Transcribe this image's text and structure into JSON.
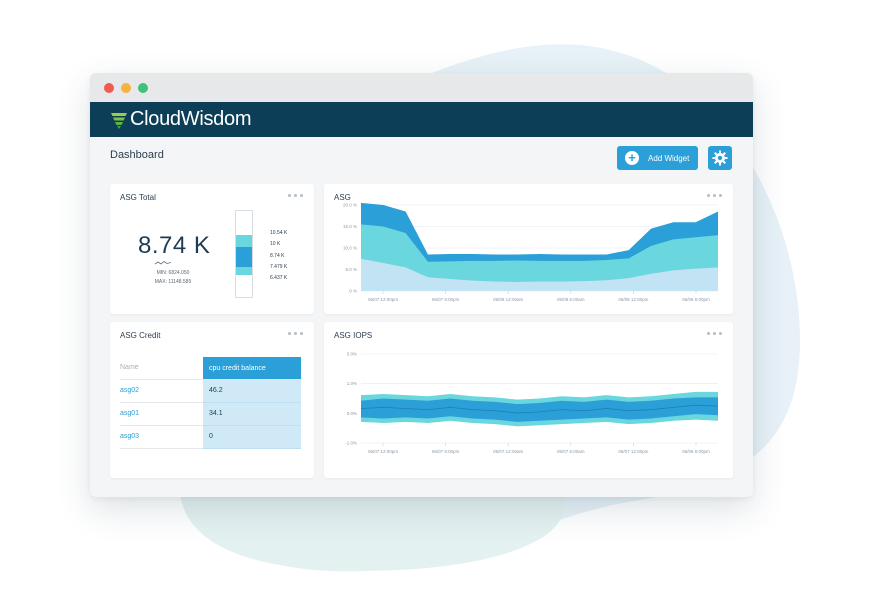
{
  "app": {
    "brand": "CloudWisdom",
    "page_title": "Dashboard",
    "add_widget_label": "Add Widget",
    "colors": {
      "brand_bar": "#0c3e57",
      "accent": "#2b9fd7",
      "series_dark": "#2b9fd7",
      "series_mid": "#6ad6dd",
      "series_light": "#c2e3f3"
    }
  },
  "widgets": {
    "asg_total": {
      "title": "ASG Total",
      "value": "8.74 K",
      "min_label": "MIN: 6824.050",
      "max_label": "MAX: 11148.585",
      "scale_labels": [
        "10.54 K",
        "10 K",
        "8.74 K",
        "7.479 K",
        "6.437 K"
      ]
    },
    "asg": {
      "title": "ASG"
    },
    "asg_credit": {
      "title": "ASG Credit",
      "columns": [
        "Name",
        "cpu credit balance"
      ],
      "rows": [
        {
          "name": "asg02",
          "value": "46.2"
        },
        {
          "name": "asg01",
          "value": "34.1"
        },
        {
          "name": "asg03",
          "value": "0"
        }
      ]
    },
    "asg_iops": {
      "title": "ASG IOPS"
    }
  },
  "chart_data": [
    {
      "type": "area",
      "title": "ASG",
      "y_ticks": [
        "20.0 %",
        "15.0 %",
        "10.0 %",
        "5.0 %",
        "0 %"
      ],
      "ylim": [
        0,
        20
      ],
      "x_ticks": [
        "06/07 12:00pm",
        "06/07 6:00pm",
        "06/08 12:00am",
        "06/08 6:00am",
        "06/08 12:00pm",
        "06/08 6:00pm"
      ],
      "x": [
        0,
        2,
        4,
        6,
        8,
        10,
        12,
        14,
        16,
        18,
        20,
        22,
        24,
        26,
        28,
        30,
        32
      ],
      "grid": true,
      "series": [
        {
          "values": [
            20.5,
            20,
            18.5,
            8.5,
            8.6,
            8.6,
            8.5,
            8.5,
            8.6,
            8.5,
            8.5,
            8.5,
            9.5,
            14.5,
            16,
            16,
            18.5
          ]
        },
        {
          "values": [
            15.5,
            15,
            13.5,
            6.8,
            6.9,
            7,
            7,
            7.1,
            7,
            7,
            7,
            7.2,
            7.6,
            10.5,
            12,
            12.5,
            13
          ]
        },
        {
          "values": [
            7.5,
            6.5,
            5.5,
            3.2,
            2.8,
            2.4,
            2.2,
            2.1,
            2.2,
            2.2,
            2.3,
            2.5,
            3,
            4,
            4.8,
            5.2,
            5.5
          ]
        }
      ]
    },
    {
      "type": "area",
      "title": "ASG IOPS",
      "y_ticks": [
        "3.0%",
        "1.0%",
        "0.0%",
        "-1.0%"
      ],
      "ylim": [
        -1,
        3
      ],
      "x_ticks": [
        "06/07 12:00pm",
        "06/07 6:00pm",
        "06/07 12:00am",
        "06/07 6:00am",
        "06/07 12:00pm",
        "06/08 6:00pm"
      ],
      "x": [
        0,
        2,
        4,
        6,
        8,
        10,
        12,
        14,
        16,
        18,
        20,
        22,
        24,
        26,
        28,
        30,
        32
      ],
      "grid": true,
      "series": [
        {
          "upper": [
            1.15,
            1.2,
            1.15,
            1.1,
            1.2,
            1.1,
            1.05,
            0.95,
            1.0,
            1.1,
            1.05,
            1.15,
            1.05,
            1.1,
            1.2,
            1.3,
            1.3
          ],
          "lower": [
            -0.05,
            -0.1,
            -0.05,
            -0.1,
            0.0,
            -0.1,
            -0.15,
            -0.25,
            -0.2,
            -0.15,
            -0.1,
            -0.05,
            -0.15,
            -0.1,
            0.0,
            0.05,
            0.0
          ]
        },
        {
          "upper": [
            0.9,
            1.0,
            0.95,
            0.9,
            1.0,
            0.9,
            0.85,
            0.75,
            0.8,
            0.9,
            0.85,
            0.95,
            0.85,
            0.9,
            1.0,
            1.05,
            1.05
          ],
          "lower": [
            0.15,
            0.1,
            0.15,
            0.1,
            0.2,
            0.1,
            0.05,
            -0.05,
            0.0,
            0.05,
            0.1,
            0.15,
            0.05,
            0.1,
            0.2,
            0.3,
            0.25
          ]
        },
        {
          "values": [
            0.55,
            0.6,
            0.55,
            0.5,
            0.6,
            0.5,
            0.45,
            0.35,
            0.4,
            0.5,
            0.45,
            0.55,
            0.45,
            0.5,
            0.6,
            0.7,
            0.65
          ]
        }
      ]
    }
  ]
}
